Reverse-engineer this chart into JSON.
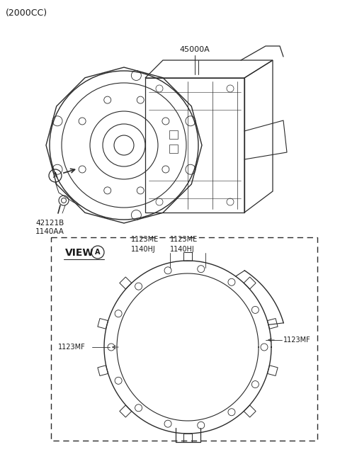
{
  "title": "(2000CC)",
  "bg_color": "#ffffff",
  "line_color": "#2a2a2a",
  "text_color": "#1a1a1a",
  "label_45000A": "45000A",
  "label_42121B": "42121B",
  "label_1140AA": "1140AA",
  "label_view": "VIEW",
  "label_A_circle": "A",
  "label_1123ME_1": "1123ME",
  "label_1123ME_2": "1123ME",
  "label_1140HJ_1": "1140HJ",
  "label_1140HJ_2": "1140HJ",
  "label_1123MF_left": "1123MF",
  "label_1123MF_right": "1123MF",
  "fig_width": 4.8,
  "fig_height": 6.55,
  "dpi": 100
}
